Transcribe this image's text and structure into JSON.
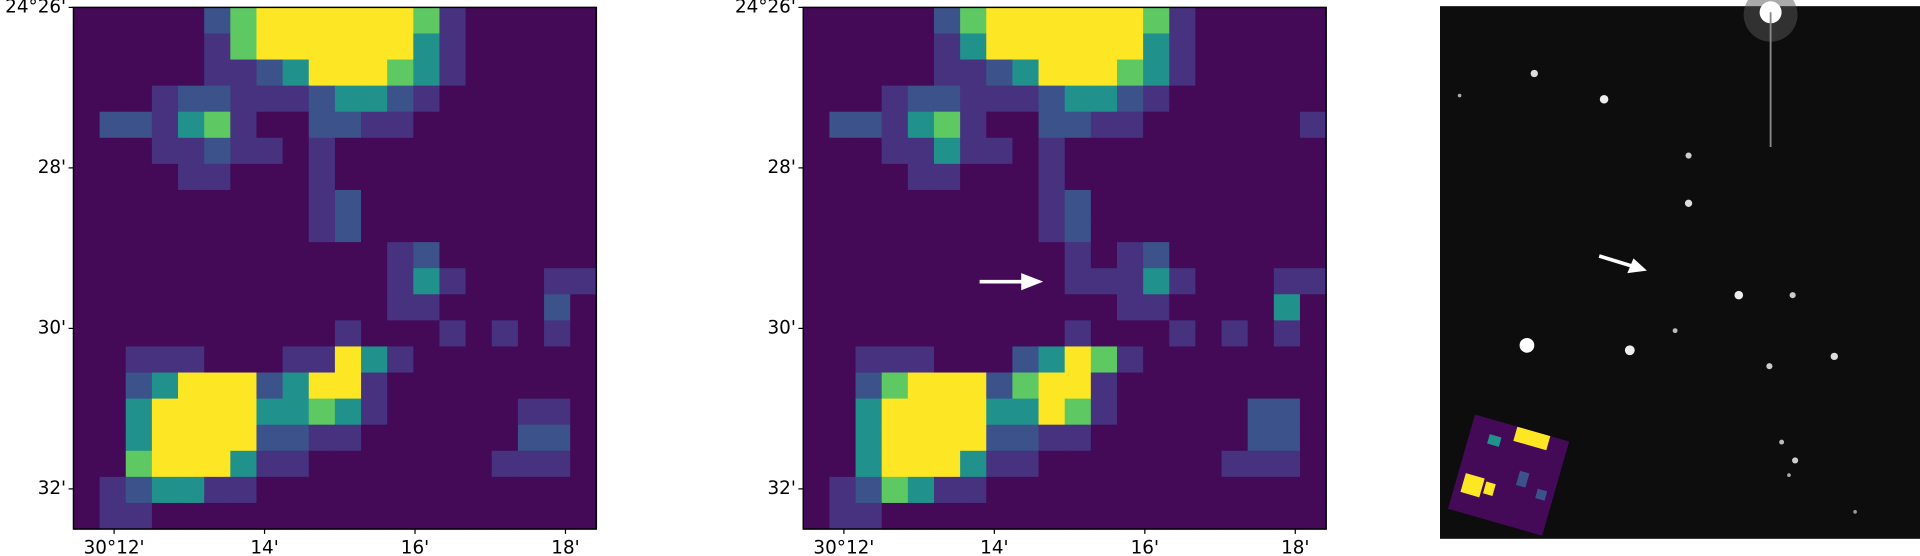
{
  "chart_data": [
    {
      "type": "heatmap",
      "colors": [
        "#440a58",
        "#46327e",
        "#3b528b",
        "#21918c",
        "#5ec962",
        "#fde725"
      ],
      "xlim": [
        11.46,
        18.41
      ],
      "ylim": [
        26,
        32.5
      ],
      "xticks": [
        {
          "value": 12,
          "label": "30°12'"
        },
        {
          "value": 14,
          "label": "14'"
        },
        {
          "value": 16,
          "label": "16'"
        },
        {
          "value": 18,
          "label": "18'"
        }
      ],
      "yticks": [
        {
          "value": 26,
          "label": "24°26'"
        },
        {
          "value": 28,
          "label": "28'"
        },
        {
          "value": 30,
          "label": "30'"
        },
        {
          "value": 32,
          "label": "32'"
        }
      ],
      "values": [
        [
          0,
          0,
          0,
          0,
          0,
          2,
          4,
          5,
          5,
          5,
          5,
          5,
          5,
          4,
          1,
          0,
          0,
          0,
          0,
          0
        ],
        [
          0,
          0,
          0,
          0,
          0,
          1,
          4,
          5,
          5,
          5,
          5,
          5,
          5,
          3,
          1,
          0,
          0,
          0,
          0,
          0
        ],
        [
          0,
          0,
          0,
          0,
          0,
          1,
          1,
          2,
          3,
          5,
          5,
          5,
          4,
          3,
          1,
          0,
          0,
          0,
          0,
          0
        ],
        [
          0,
          0,
          0,
          1,
          2,
          2,
          1,
          1,
          1,
          2,
          3,
          3,
          2,
          1,
          0,
          0,
          0,
          0,
          0,
          0
        ],
        [
          0,
          2,
          2,
          1,
          3,
          4,
          1,
          0,
          0,
          2,
          2,
          1,
          1,
          0,
          0,
          0,
          0,
          0,
          0,
          0
        ],
        [
          0,
          0,
          0,
          1,
          1,
          2,
          1,
          1,
          0,
          1,
          0,
          0,
          0,
          0,
          0,
          0,
          0,
          0,
          0,
          0
        ],
        [
          0,
          0,
          0,
          0,
          1,
          1,
          0,
          0,
          0,
          1,
          0,
          0,
          0,
          0,
          0,
          0,
          0,
          0,
          0,
          0
        ],
        [
          0,
          0,
          0,
          0,
          0,
          0,
          0,
          0,
          0,
          1,
          2,
          0,
          0,
          0,
          0,
          0,
          0,
          0,
          0,
          0
        ],
        [
          0,
          0,
          0,
          0,
          0,
          0,
          0,
          0,
          0,
          1,
          2,
          0,
          0,
          0,
          0,
          0,
          0,
          0,
          0,
          0
        ],
        [
          0,
          0,
          0,
          0,
          0,
          0,
          0,
          0,
          0,
          0,
          0,
          0,
          1,
          2,
          0,
          0,
          0,
          0,
          0,
          0
        ],
        [
          0,
          0,
          0,
          0,
          0,
          0,
          0,
          0,
          0,
          0,
          0,
          0,
          1,
          3,
          1,
          0,
          0,
          0,
          1,
          1
        ],
        [
          0,
          0,
          0,
          0,
          0,
          0,
          0,
          0,
          0,
          0,
          0,
          0,
          1,
          1,
          0,
          0,
          0,
          0,
          2,
          0
        ],
        [
          0,
          0,
          0,
          0,
          0,
          0,
          0,
          0,
          0,
          0,
          1,
          0,
          0,
          0,
          1,
          0,
          1,
          0,
          1,
          0
        ],
        [
          0,
          0,
          1,
          1,
          1,
          0,
          0,
          0,
          1,
          1,
          5,
          3,
          1,
          0,
          0,
          0,
          0,
          0,
          0,
          0
        ],
        [
          0,
          0,
          2,
          3,
          5,
          5,
          5,
          2,
          3,
          5,
          5,
          1,
          0,
          0,
          0,
          0,
          0,
          0,
          0,
          0
        ],
        [
          0,
          0,
          3,
          5,
          5,
          5,
          5,
          3,
          3,
          4,
          3,
          1,
          0,
          0,
          0,
          0,
          0,
          1,
          1,
          0
        ],
        [
          0,
          0,
          3,
          5,
          5,
          5,
          5,
          2,
          2,
          1,
          1,
          0,
          0,
          0,
          0,
          0,
          0,
          2,
          2,
          0
        ],
        [
          0,
          0,
          4,
          5,
          5,
          5,
          3,
          1,
          1,
          0,
          0,
          0,
          0,
          0,
          0,
          0,
          1,
          1,
          1,
          0
        ],
        [
          0,
          1,
          2,
          3,
          3,
          1,
          1,
          0,
          0,
          0,
          0,
          0,
          0,
          0,
          0,
          0,
          0,
          0,
          0,
          0
        ],
        [
          0,
          1,
          1,
          0,
          0,
          0,
          0,
          0,
          0,
          0,
          0,
          0,
          0,
          0,
          0,
          0,
          0,
          0,
          0,
          0
        ]
      ]
    },
    {
      "type": "heatmap",
      "colors": [
        "#440a58",
        "#46327e",
        "#3b528b",
        "#21918c",
        "#5ec962",
        "#fde725"
      ],
      "xlim": [
        11.46,
        18.41
      ],
      "ylim": [
        26,
        32.5
      ],
      "xticks": [
        {
          "value": 12,
          "label": "30°12'"
        },
        {
          "value": 14,
          "label": "14'"
        },
        {
          "value": 16,
          "label": "16'"
        },
        {
          "value": 18,
          "label": "18'"
        }
      ],
      "yticks": [
        {
          "value": 26,
          "label": "24°26'"
        },
        {
          "value": 28,
          "label": "28'"
        },
        {
          "value": 30,
          "label": "30'"
        },
        {
          "value": 32,
          "label": "32'"
        }
      ],
      "values": [
        [
          0,
          0,
          0,
          0,
          0,
          2,
          4,
          5,
          5,
          5,
          5,
          5,
          5,
          4,
          1,
          0,
          0,
          0,
          0,
          0
        ],
        [
          0,
          0,
          0,
          0,
          0,
          1,
          3,
          5,
          5,
          5,
          5,
          5,
          5,
          3,
          1,
          0,
          0,
          0,
          0,
          0
        ],
        [
          0,
          0,
          0,
          0,
          0,
          1,
          1,
          2,
          3,
          5,
          5,
          5,
          4,
          3,
          1,
          0,
          0,
          0,
          0,
          0
        ],
        [
          0,
          0,
          0,
          1,
          2,
          2,
          1,
          1,
          1,
          2,
          3,
          3,
          2,
          1,
          0,
          0,
          0,
          0,
          0,
          0
        ],
        [
          0,
          2,
          2,
          1,
          3,
          4,
          1,
          0,
          0,
          2,
          2,
          1,
          1,
          0,
          0,
          0,
          0,
          0,
          0,
          1
        ],
        [
          0,
          0,
          0,
          1,
          1,
          3,
          1,
          1,
          0,
          1,
          0,
          0,
          0,
          0,
          0,
          0,
          0,
          0,
          0,
          0
        ],
        [
          0,
          0,
          0,
          0,
          1,
          1,
          0,
          0,
          0,
          1,
          0,
          0,
          0,
          0,
          0,
          0,
          0,
          0,
          0,
          0
        ],
        [
          0,
          0,
          0,
          0,
          0,
          0,
          0,
          0,
          0,
          1,
          2,
          0,
          0,
          0,
          0,
          0,
          0,
          0,
          0,
          0
        ],
        [
          0,
          0,
          0,
          0,
          0,
          0,
          0,
          0,
          0,
          1,
          2,
          0,
          0,
          0,
          0,
          0,
          0,
          0,
          0,
          0
        ],
        [
          0,
          0,
          0,
          0,
          0,
          0,
          0,
          0,
          0,
          0,
          1,
          0,
          1,
          2,
          0,
          0,
          0,
          0,
          0,
          0
        ],
        [
          0,
          0,
          0,
          0,
          0,
          0,
          0,
          0,
          0,
          0,
          1,
          1,
          1,
          3,
          1,
          0,
          0,
          0,
          1,
          1
        ],
        [
          0,
          0,
          0,
          0,
          0,
          0,
          0,
          0,
          0,
          0,
          0,
          0,
          1,
          1,
          0,
          0,
          0,
          0,
          3,
          0
        ],
        [
          0,
          0,
          0,
          0,
          0,
          0,
          0,
          0,
          0,
          0,
          1,
          0,
          0,
          0,
          1,
          0,
          1,
          0,
          1,
          0
        ],
        [
          0,
          0,
          1,
          1,
          1,
          0,
          0,
          0,
          2,
          3,
          5,
          4,
          1,
          0,
          0,
          0,
          0,
          0,
          0,
          0
        ],
        [
          0,
          0,
          2,
          4,
          5,
          5,
          5,
          2,
          4,
          5,
          5,
          1,
          0,
          0,
          0,
          0,
          0,
          0,
          0,
          0
        ],
        [
          0,
          0,
          3,
          5,
          5,
          5,
          5,
          3,
          3,
          5,
          4,
          1,
          0,
          0,
          0,
          0,
          0,
          2,
          2,
          0
        ],
        [
          0,
          0,
          3,
          5,
          5,
          5,
          5,
          2,
          2,
          1,
          1,
          0,
          0,
          0,
          0,
          0,
          0,
          2,
          2,
          0
        ],
        [
          0,
          0,
          3,
          5,
          5,
          5,
          3,
          1,
          1,
          0,
          0,
          0,
          0,
          0,
          0,
          0,
          1,
          1,
          1,
          0
        ],
        [
          0,
          1,
          2,
          4,
          3,
          1,
          1,
          0,
          0,
          0,
          0,
          0,
          0,
          0,
          0,
          0,
          0,
          0,
          0,
          0
        ],
        [
          0,
          1,
          1,
          0,
          0,
          0,
          0,
          0,
          0,
          0,
          0,
          0,
          0,
          0,
          0,
          0,
          0,
          0,
          0,
          0
        ]
      ]
    }
  ]
}
